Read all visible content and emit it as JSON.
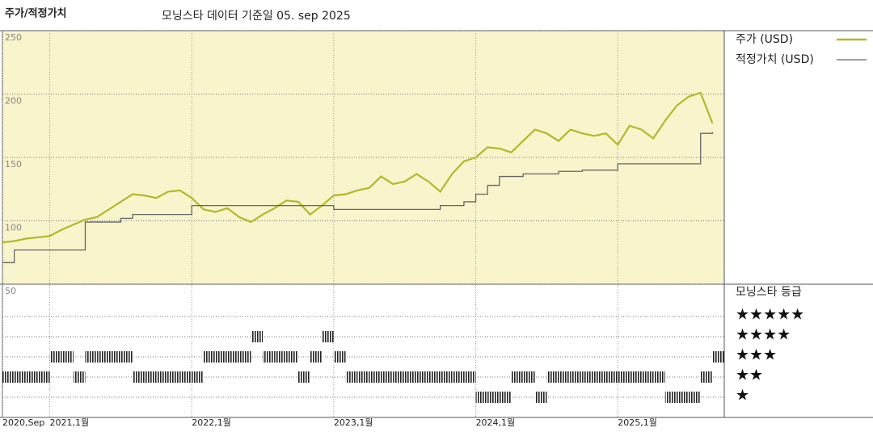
{
  "chart_data": [
    {
      "type": "line",
      "title": "주가/적정가치",
      "subtitle": "모닝스타 데이터 기준일 05. sep 2025",
      "x": [
        "2020-09",
        "2020-10",
        "2020-11",
        "2020-12",
        "2021-01",
        "2021-02",
        "2021-03",
        "2021-04",
        "2021-05",
        "2021-06",
        "2021-07",
        "2021-08",
        "2021-09",
        "2021-10",
        "2021-11",
        "2021-12",
        "2022-01",
        "2022-02",
        "2022-03",
        "2022-04",
        "2022-05",
        "2022-06",
        "2022-07",
        "2022-08",
        "2022-09",
        "2022-10",
        "2022-11",
        "2022-12",
        "2023-01",
        "2023-02",
        "2023-03",
        "2023-04",
        "2023-05",
        "2023-06",
        "2023-07",
        "2023-08",
        "2023-09",
        "2023-10",
        "2023-11",
        "2023-12",
        "2024-01",
        "2024-02",
        "2024-03",
        "2024-04",
        "2024-05",
        "2024-06",
        "2024-07",
        "2024-08",
        "2024-09",
        "2024-10",
        "2024-11",
        "2024-12",
        "2025-01",
        "2025-02",
        "2025-03",
        "2025-04",
        "2025-05",
        "2025-06",
        "2025-07",
        "2025-08",
        "2025-09"
      ],
      "series": [
        {
          "name": "주가 (USD)",
          "color": "#b3b829",
          "values": [
            83,
            84,
            86,
            87,
            88,
            93,
            97,
            101,
            103,
            109,
            115,
            121,
            120,
            118,
            123,
            124,
            118,
            109,
            107,
            110,
            103,
            99,
            105,
            110,
            116,
            115,
            105,
            112,
            120,
            121,
            124,
            126,
            135,
            129,
            131,
            137,
            131,
            123,
            137,
            147,
            150,
            158,
            157,
            154,
            163,
            172,
            169,
            163,
            172,
            169,
            167,
            169,
            160,
            175,
            172,
            165,
            179,
            191,
            198,
            201,
            177
          ]
        },
        {
          "name": "적정가치 (USD)",
          "color": "#666666",
          "step": true,
          "values": [
            67,
            77,
            77,
            77,
            77,
            77,
            77,
            99,
            99,
            99,
            102,
            105,
            105,
            105,
            105,
            105,
            112,
            112,
            112,
            112,
            112,
            112,
            112,
            112,
            112,
            112,
            112,
            112,
            109,
            109,
            109,
            109,
            109,
            109,
            109,
            109,
            109,
            112,
            112,
            115,
            121,
            128,
            135,
            135,
            137,
            137,
            137,
            139,
            139,
            140,
            140,
            140,
            145,
            145,
            145,
            145,
            145,
            145,
            145,
            169,
            170
          ]
        }
      ],
      "xlim": [
        "2020-09",
        "2025-10"
      ],
      "xticks": [
        {
          "value": "2020-09",
          "label": "2020,Sep"
        },
        {
          "value": "2021-01",
          "label": "2021,1월"
        },
        {
          "value": "2022-01",
          "label": "2022,1월"
        },
        {
          "value": "2023-01",
          "label": "2023,1월"
        },
        {
          "value": "2024-01",
          "label": "2024,1월"
        },
        {
          "value": "2025-01",
          "label": "2025,1월"
        }
      ],
      "ylim": [
        50,
        250
      ],
      "yticks": [
        50,
        100,
        150,
        200,
        250
      ],
      "grid": true,
      "background": "#f8f4cc"
    },
    {
      "type": "rating",
      "title": "모닝스타 등급",
      "x": [
        "2020-09",
        "2020-10",
        "2020-11",
        "2020-12",
        "2021-01",
        "2021-02",
        "2021-03",
        "2021-04",
        "2021-05",
        "2021-06",
        "2021-07",
        "2021-08",
        "2021-09",
        "2021-10",
        "2021-11",
        "2021-12",
        "2022-01",
        "2022-02",
        "2022-03",
        "2022-04",
        "2022-05",
        "2022-06",
        "2022-07",
        "2022-08",
        "2022-09",
        "2022-10",
        "2022-11",
        "2022-12",
        "2023-01",
        "2023-02",
        "2023-03",
        "2023-04",
        "2023-05",
        "2023-06",
        "2023-07",
        "2023-08",
        "2023-09",
        "2023-10",
        "2023-11",
        "2023-12",
        "2024-01",
        "2024-02",
        "2024-03",
        "2024-04",
        "2024-05",
        "2024-06",
        "2024-07",
        "2024-08",
        "2024-09",
        "2024-10",
        "2024-11",
        "2024-12",
        "2025-01",
        "2025-02",
        "2025-03",
        "2025-04",
        "2025-05",
        "2025-06",
        "2025-07",
        "2025-08",
        "2025-09"
      ],
      "values": [
        2,
        2,
        2,
        2,
        3,
        3,
        2,
        3,
        3,
        3,
        3,
        2,
        2,
        2,
        2,
        2,
        2,
        3,
        3,
        3,
        3,
        4,
        3,
        3,
        3,
        2,
        3,
        4,
        3,
        2,
        2,
        2,
        2,
        2,
        2,
        2,
        2,
        2,
        2,
        2,
        1,
        1,
        1,
        2,
        2,
        1,
        2,
        2,
        2,
        2,
        2,
        2,
        2,
        2,
        2,
        2,
        1,
        1,
        1,
        2,
        3
      ],
      "ylim": [
        0,
        6.6
      ],
      "yticks": [
        {
          "value": 5,
          "label": "★★★★★"
        },
        {
          "value": 4,
          "label": "★★★★"
        },
        {
          "value": 3,
          "label": "★★★"
        },
        {
          "value": 2,
          "label": "★★"
        },
        {
          "value": 1,
          "label": "★"
        }
      ],
      "color": "#222222"
    }
  ]
}
